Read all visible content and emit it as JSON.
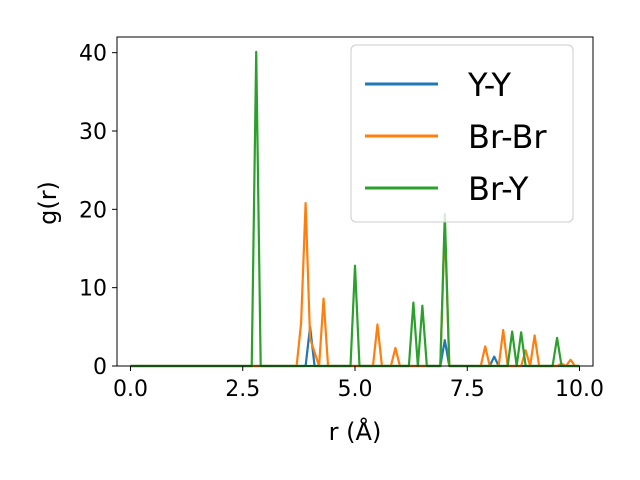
{
  "chart_data": {
    "type": "line",
    "xlabel": "r (Å)",
    "ylabel": "g(r)",
    "xlim": [
      -0.3,
      10.3
    ],
    "ylim": [
      0,
      42
    ],
    "xticks": [
      0.0,
      2.5,
      5.0,
      7.5,
      10.0
    ],
    "xtick_labels": [
      "0.0",
      "2.5",
      "5.0",
      "7.5",
      "10.0"
    ],
    "yticks": [
      0,
      10,
      20,
      30,
      40
    ],
    "ytick_labels": [
      "0",
      "10",
      "20",
      "30",
      "40"
    ],
    "grid": false,
    "legend_position": "upper-right",
    "series": [
      {
        "name": "Y-Y",
        "color": "#1f77b4",
        "x": [
          0.0,
          3.7,
          3.9,
          4.0,
          4.1,
          5.1,
          6.9,
          7.0,
          7.1,
          7.9,
          8.0,
          8.1,
          8.2,
          10.0
        ],
        "y": [
          0,
          0,
          0,
          5.0,
          0,
          0,
          0,
          3.3,
          0,
          0,
          0,
          1.2,
          0,
          0
        ]
      },
      {
        "name": "Br-Br",
        "color": "#ff7f0e",
        "x": [
          0.0,
          3.7,
          3.8,
          3.9,
          4.0,
          4.2,
          4.3,
          4.4,
          5.4,
          5.5,
          5.6,
          5.8,
          5.9,
          6.0,
          6.9,
          7.0,
          7.1,
          7.8,
          7.9,
          8.0,
          8.2,
          8.3,
          8.4,
          8.7,
          8.8,
          8.9,
          9.0,
          9.1,
          9.2,
          9.5,
          9.6,
          9.7,
          9.8,
          9.9,
          10.0
        ],
        "y": [
          0,
          0,
          5.5,
          20.8,
          3.5,
          0,
          8.6,
          0,
          0,
          5.3,
          0,
          0,
          2.3,
          0,
          0,
          18.2,
          0,
          0,
          2.5,
          0,
          0,
          4.6,
          0,
          0,
          2.0,
          0,
          3.9,
          0,
          0,
          0,
          0.3,
          0,
          0.8,
          0,
          0
        ]
      },
      {
        "name": "Br-Y",
        "color": "#2ca02c",
        "x": [
          0.0,
          2.7,
          2.8,
          2.9,
          4.9,
          5.0,
          5.1,
          6.2,
          6.3,
          6.4,
          6.5,
          6.6,
          6.9,
          7.0,
          7.1,
          8.4,
          8.5,
          8.6,
          8.7,
          8.8,
          9.4,
          9.5,
          9.6,
          10.0
        ],
        "y": [
          0,
          0,
          40.1,
          0,
          0,
          12.8,
          0,
          0,
          8.1,
          0,
          7.7,
          0,
          0,
          19.4,
          0,
          0,
          4.4,
          0,
          4.3,
          0,
          0,
          3.6,
          0,
          0
        ]
      }
    ]
  }
}
